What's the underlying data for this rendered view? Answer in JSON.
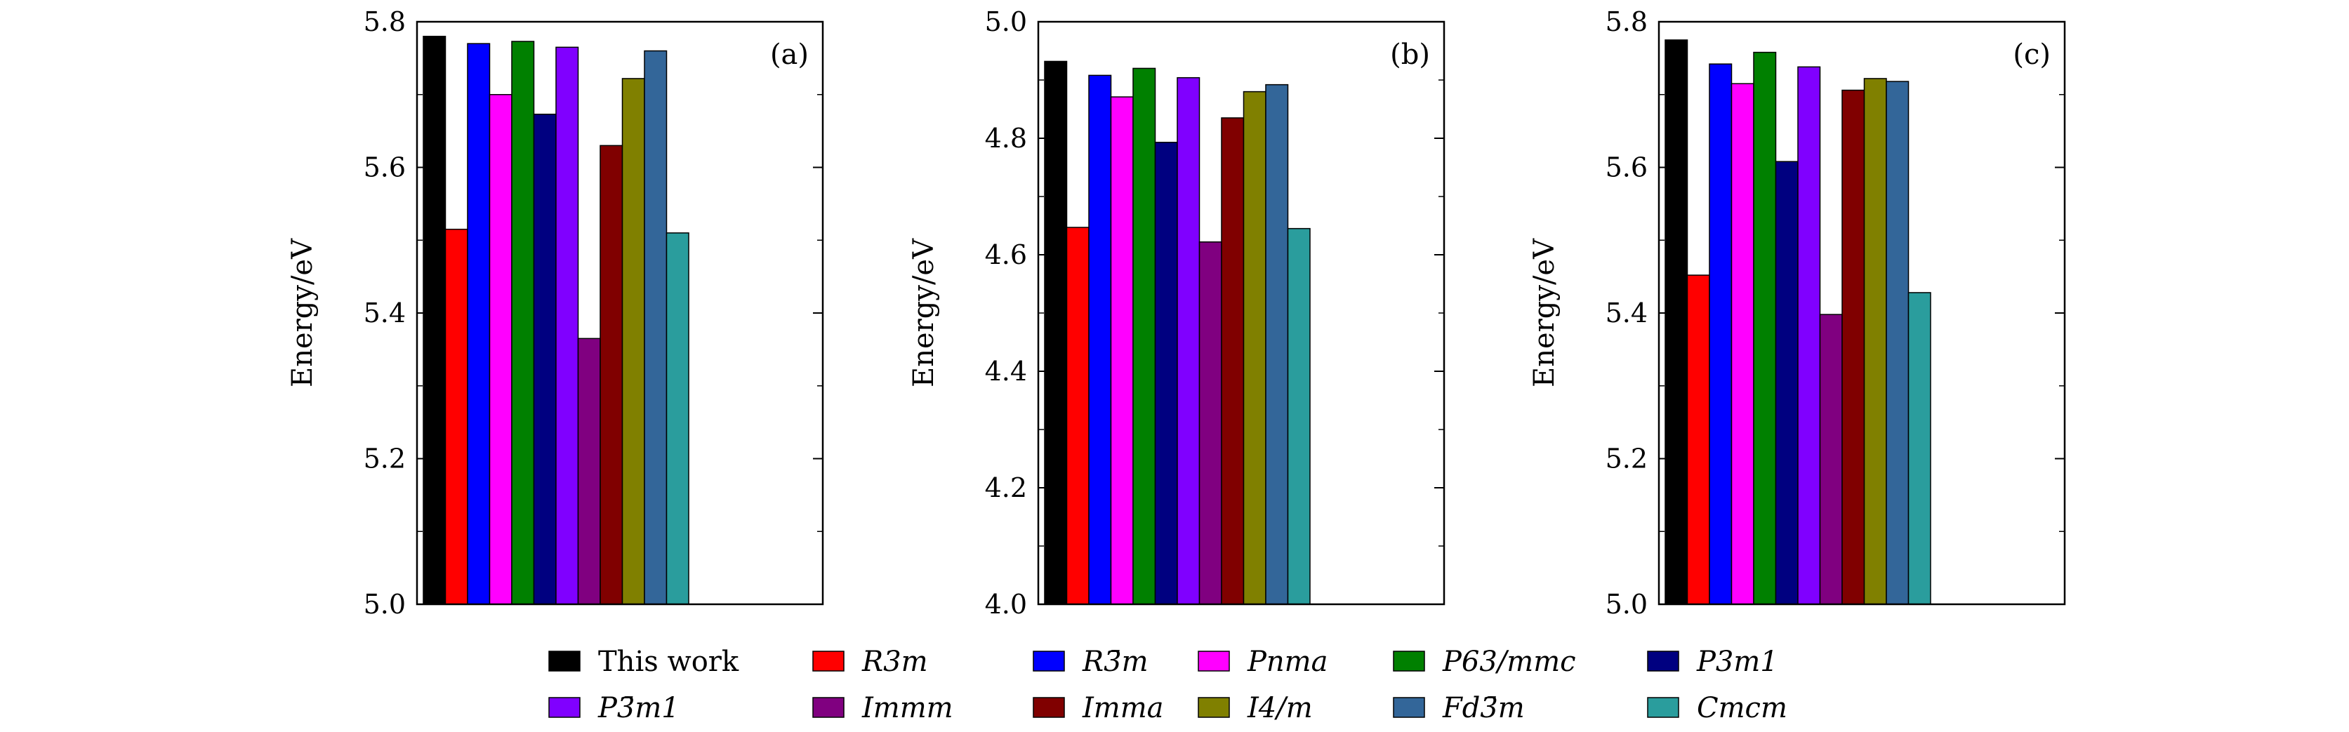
{
  "chart_data": [
    {
      "type": "bar",
      "panel_label": "(a)",
      "ylabel": "Energy/eV",
      "ylim": [
        5.0,
        5.8
      ],
      "yticks": [
        "5.0",
        "5.2",
        "5.4",
        "5.6",
        "5.8"
      ],
      "values": [
        5.78,
        5.515,
        5.77,
        5.7,
        5.773,
        5.673,
        5.765,
        5.365,
        5.63,
        5.722,
        5.76,
        5.51
      ]
    },
    {
      "type": "bar",
      "panel_label": "(b)",
      "ylabel": "Energy/eV",
      "ylim": [
        4.0,
        5.0
      ],
      "yticks": [
        "4.0",
        "4.2",
        "4.4",
        "4.6",
        "4.8",
        "5.0"
      ],
      "values": [
        4.932,
        4.647,
        4.908,
        4.871,
        4.92,
        4.793,
        4.904,
        4.622,
        4.835,
        4.88,
        4.892,
        4.645
      ]
    },
    {
      "type": "bar",
      "panel_label": "(c)",
      "ylabel": "Energy/eV",
      "ylim": [
        5.0,
        5.8
      ],
      "yticks": [
        "5.0",
        "5.2",
        "5.4",
        "5.6",
        "5.8"
      ],
      "values": [
        5.775,
        5.452,
        5.742,
        5.715,
        5.758,
        5.608,
        5.738,
        5.398,
        5.706,
        5.722,
        5.718,
        5.428
      ]
    }
  ],
  "legend": [
    {
      "label": "This work",
      "color": "#000000",
      "italic": false
    },
    {
      "label": "R3m",
      "color": "#ff0000",
      "italic": true
    },
    {
      "label": "R3̄m",
      "color": "#0000ff",
      "italic": true
    },
    {
      "label": "Pnma",
      "color": "#ff00ff",
      "italic": true
    },
    {
      "label": "P63/mmc",
      "color": "#008000",
      "italic": true
    },
    {
      "label": "P3m1",
      "color": "#000080",
      "italic": true
    },
    {
      "label": "P3̄m1",
      "color": "#8000ff",
      "italic": true
    },
    {
      "label": "Immm",
      "color": "#800080",
      "italic": true
    },
    {
      "label": "Imma",
      "color": "#800000",
      "italic": true
    },
    {
      "label": "I4/m",
      "color": "#808000",
      "italic": true
    },
    {
      "label": "Fd3̄m",
      "color": "#336699",
      "italic": true
    },
    {
      "label": "Cmcm",
      "color": "#2a9d9d",
      "italic": true
    }
  ]
}
